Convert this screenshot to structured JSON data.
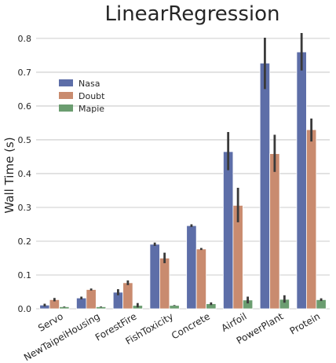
{
  "chart_data": {
    "type": "bar",
    "title": "LinearRegression",
    "xlabel": "",
    "ylabel": "Wall Time (s)",
    "ylim": [
      0,
      0.83
    ],
    "yticks": [
      0.0,
      0.1,
      0.2,
      0.3,
      0.4,
      0.5,
      0.6,
      0.7,
      0.8
    ],
    "grid": true,
    "legend_position": "upper-left",
    "categories": [
      "Servo",
      "NewTaipeiHousing",
      "ForestFire",
      "FishToxicity",
      "Concrete",
      "Airfoil",
      "PowerPlant",
      "Protein"
    ],
    "series": [
      {
        "name": "Nasa",
        "color": "#5d6ea8",
        "values": [
          0.011,
          0.032,
          0.049,
          0.191,
          0.246,
          0.465,
          0.727,
          0.76
        ],
        "error_low": [
          0.007,
          0.028,
          0.04,
          0.186,
          0.242,
          0.41,
          0.65,
          0.705
        ],
        "error_high": [
          0.015,
          0.036,
          0.058,
          0.196,
          0.25,
          0.523,
          0.802,
          0.816
        ]
      },
      {
        "name": "Doubt",
        "color": "#c98b6f",
        "values": [
          0.027,
          0.057,
          0.077,
          0.15,
          0.177,
          0.306,
          0.459,
          0.53
        ],
        "error_low": [
          0.022,
          0.054,
          0.07,
          0.135,
          0.174,
          0.256,
          0.405,
          0.495
        ],
        "error_high": [
          0.032,
          0.06,
          0.084,
          0.166,
          0.18,
          0.358,
          0.515,
          0.563
        ]
      },
      {
        "name": "Mapie",
        "color": "#6b9d70",
        "values": [
          0.006,
          0.006,
          0.01,
          0.01,
          0.015,
          0.026,
          0.028,
          0.027
        ],
        "error_low": [
          0.005,
          0.005,
          0.004,
          0.009,
          0.011,
          0.016,
          0.018,
          0.023
        ],
        "error_high": [
          0.007,
          0.007,
          0.017,
          0.011,
          0.019,
          0.036,
          0.04,
          0.031
        ]
      }
    ]
  }
}
